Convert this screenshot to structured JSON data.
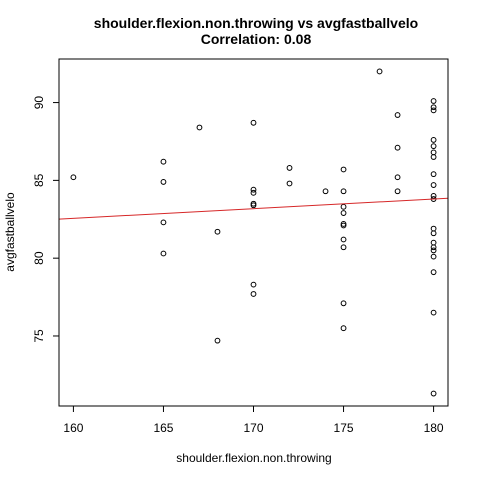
{
  "chart_data": {
    "type": "scatter",
    "title": "shoulder.flexion.non.throwing vs avgfastballvelo",
    "subtitle": "Correlation: 0.08",
    "xlabel": "shoulder.flexion.non.throwing",
    "ylabel": "avgfastballvelo",
    "xlim": [
      159.2,
      180.8
    ],
    "ylim": [
      70.5,
      92.8
    ],
    "x_ticks": [
      160,
      165,
      170,
      175,
      180
    ],
    "y_ticks": [
      75,
      80,
      85,
      90
    ],
    "grid": false,
    "legend": "none",
    "points": [
      [
        160,
        85.2
      ],
      [
        165,
        86.2
      ],
      [
        165,
        84.9
      ],
      [
        165,
        82.3
      ],
      [
        165,
        80.3
      ],
      [
        167,
        88.4
      ],
      [
        168,
        81.7
      ],
      [
        168,
        74.7
      ],
      [
        170,
        88.7
      ],
      [
        170,
        84.4
      ],
      [
        170,
        84.2
      ],
      [
        170,
        83.5
      ],
      [
        170,
        83.4
      ],
      [
        170,
        78.3
      ],
      [
        170,
        77.7
      ],
      [
        172,
        85.8
      ],
      [
        172,
        84.8
      ],
      [
        174,
        84.3
      ],
      [
        175,
        85.7
      ],
      [
        175,
        84.3
      ],
      [
        175,
        83.3
      ],
      [
        175,
        82.9
      ],
      [
        175,
        82.2
      ],
      [
        175,
        82.1
      ],
      [
        175,
        81.2
      ],
      [
        175,
        80.7
      ],
      [
        175,
        77.1
      ],
      [
        175,
        75.5
      ],
      [
        177,
        92.0
      ],
      [
        178,
        89.2
      ],
      [
        178,
        87.1
      ],
      [
        178,
        85.2
      ],
      [
        178,
        84.3
      ],
      [
        180,
        90.1
      ],
      [
        180,
        89.7
      ],
      [
        180,
        89.5
      ],
      [
        180,
        87.6
      ],
      [
        180,
        87.2
      ],
      [
        180,
        86.8
      ],
      [
        180,
        86.5
      ],
      [
        180,
        85.4
      ],
      [
        180,
        84.7
      ],
      [
        180,
        84.0
      ],
      [
        180,
        83.8
      ],
      [
        180,
        81.9
      ],
      [
        180,
        81.6
      ],
      [
        180,
        81.0
      ],
      [
        180,
        80.7
      ],
      [
        180,
        80.5
      ],
      [
        180,
        80.1
      ],
      [
        180,
        79.1
      ],
      [
        180,
        76.5
      ],
      [
        180,
        71.3
      ]
    ],
    "fit_line": {
      "intercept": 72.64,
      "slope": 0.062
    },
    "colors": {
      "points": "#000000",
      "fit_line": "#d62728"
    }
  }
}
